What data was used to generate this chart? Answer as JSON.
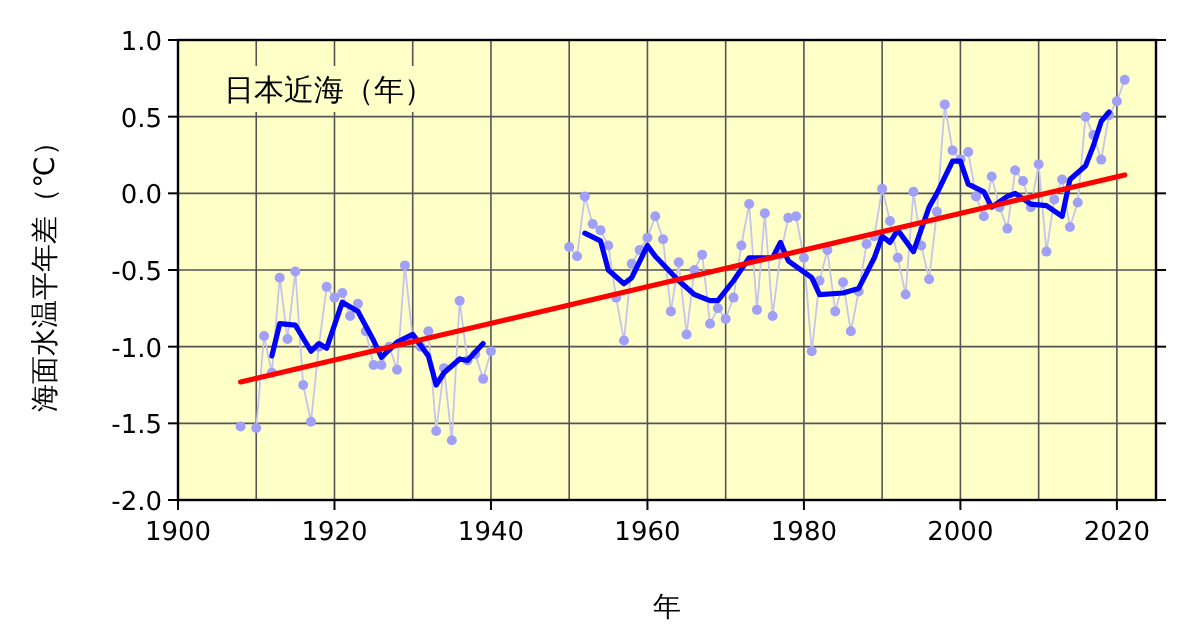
{
  "chart_data": {
    "type": "line",
    "title": "日本近海（年）",
    "xlabel": "年",
    "ylabel": "海面水温平年差（℃）",
    "xlim": [
      1900,
      2025
    ],
    "ylim": [
      -2,
      1
    ],
    "xticks": [
      1900,
      {
        "value": 1910,
        "label": null
      },
      1920,
      {
        "value": 1930,
        "label": null
      },
      1940,
      {
        "value": 1950,
        "label": null
      },
      1960,
      {
        "value": 1970,
        "label": null
      },
      1980,
      {
        "value": 1990,
        "label": null
      },
      2000,
      {
        "value": 2010,
        "label": null
      },
      2020
    ],
    "yticks": [
      {
        "value": -2,
        "label": "-2.0"
      },
      {
        "value": -1.5,
        "label": "-1.5"
      },
      {
        "value": -1,
        "label": "-1.0"
      },
      {
        "value": -0.5,
        "label": "-0.5"
      },
      {
        "value": 0,
        "label": "0.0"
      },
      {
        "value": 0.5,
        "label": "0.5"
      },
      {
        "value": 1,
        "label": "1.0"
      }
    ],
    "grid": true,
    "series": [
      {
        "color": "#a0a0f8",
        "marker": "circle",
        "x": [
          1908,
          1909,
          1910,
          1911,
          1912,
          1913,
          1914,
          1915,
          1916,
          1917,
          1918,
          1919,
          1920,
          1921,
          1922,
          1923,
          1924,
          1925,
          1926,
          1927,
          1928,
          1929,
          1930,
          1931,
          1932,
          1933,
          1934,
          1935,
          1936,
          1937,
          1938,
          1939,
          1940,
          1941,
          1942,
          1943,
          1944,
          1945,
          1946,
          1947,
          1948,
          1949,
          1950,
          1951,
          1952,
          1953,
          1954,
          1955,
          1956,
          1957,
          1958,
          1959,
          1960,
          1961,
          1962,
          1963,
          1964,
          1965,
          1966,
          1967,
          1968,
          1969,
          1970,
          1971,
          1972,
          1973,
          1974,
          1975,
          1976,
          1977,
          1978,
          1979,
          1980,
          1981,
          1982,
          1983,
          1984,
          1985,
          1986,
          1987,
          1988,
          1989,
          1990,
          1991,
          1992,
          1993,
          1994,
          1995,
          1996,
          1997,
          1998,
          1999,
          2000,
          2001,
          2002,
          2003,
          2004,
          2005,
          2006,
          2007,
          2008,
          2009,
          2010,
          2011,
          2012,
          2013,
          2014,
          2015,
          2016,
          2017,
          2018,
          2019,
          2020,
          2021
        ],
        "values": [
          -1.52,
          null,
          -1.53,
          -0.93,
          -1.17,
          -0.55,
          -0.95,
          -0.51,
          -1.25,
          -1.49,
          -1.0,
          -0.61,
          -0.68,
          -0.65,
          -0.8,
          -0.72,
          -0.9,
          -1.12,
          -1.12,
          -1.0,
          -1.15,
          -0.47,
          -0.95,
          -1.0,
          -0.9,
          -1.55,
          -1.14,
          -1.61,
          -0.7,
          -1.09,
          -1.05,
          -1.21,
          -1.03,
          null,
          null,
          null,
          null,
          null,
          null,
          null,
          null,
          null,
          -0.35,
          -0.41,
          -0.02,
          -0.2,
          -0.24,
          -0.34,
          -0.68,
          -0.96,
          -0.46,
          -0.37,
          -0.29,
          -0.15,
          -0.3,
          -0.77,
          -0.45,
          -0.92,
          -0.5,
          -0.4,
          -0.85,
          -0.75,
          -0.82,
          -0.68,
          -0.34,
          -0.07,
          -0.76,
          -0.13,
          -0.8,
          -0.4,
          -0.16,
          -0.15,
          -0.42,
          -1.03,
          -0.57,
          -0.37,
          -0.77,
          -0.58,
          -0.9,
          -0.64,
          -0.33,
          -0.28,
          0.03,
          -0.18,
          -0.42,
          -0.66,
          0.01,
          -0.34,
          -0.56,
          -0.12,
          0.58,
          0.28,
          0.22,
          0.27,
          -0.02,
          -0.15,
          0.11,
          -0.09,
          -0.23,
          0.15,
          0.08,
          -0.09,
          0.19,
          -0.38,
          -0.04,
          0.09,
          -0.22,
          -0.06,
          0.5,
          0.38,
          0.22,
          0.51,
          0.6,
          0.74
        ]
      },
      {
        "color": "#0000ff",
        "marker": "none",
        "x": [
          1912,
          1913,
          1915,
          1917,
          1918,
          1919,
          1921,
          1923,
          1925,
          1926,
          1928,
          1930,
          1932,
          1933,
          1934,
          1936,
          1937,
          1939,
          1945,
          1952,
          1954,
          1955,
          1957,
          1958,
          1960,
          1961,
          1964,
          1966,
          1968,
          1969,
          1971,
          1973,
          1976,
          1977,
          1978,
          1981,
          1982,
          1985,
          1987,
          1989,
          1990,
          1991,
          1992,
          1994,
          1996,
          1997,
          1999,
          2000,
          2001,
          2003,
          2004,
          2006,
          2007,
          2009,
          2011,
          2013,
          2014,
          2016,
          2017,
          2018,
          2019
        ],
        "values": [
          -1.06,
          -0.85,
          -0.86,
          -1.03,
          -0.98,
          -1.01,
          -0.71,
          -0.77,
          -0.96,
          -1.07,
          -0.97,
          -0.92,
          -1.06,
          -1.25,
          -1.17,
          -1.08,
          -1.09,
          -0.98,
          null,
          -0.26,
          -0.31,
          -0.5,
          -0.59,
          -0.55,
          -0.34,
          -0.41,
          -0.57,
          -0.66,
          -0.7,
          -0.7,
          -0.57,
          -0.42,
          -0.42,
          -0.32,
          -0.44,
          -0.55,
          -0.66,
          -0.65,
          -0.62,
          -0.42,
          -0.28,
          -0.32,
          -0.24,
          -0.38,
          -0.09,
          0.0,
          0.21,
          0.21,
          0.06,
          0.01,
          -0.09,
          -0.02,
          0.0,
          -0.07,
          -0.08,
          -0.15,
          0.09,
          0.18,
          0.31,
          0.47,
          0.53
        ]
      },
      {
        "color": "#ff0000",
        "marker": "none",
        "x": [
          1908,
          2021
        ],
        "values": [
          -1.23,
          0.12
        ]
      }
    ]
  }
}
